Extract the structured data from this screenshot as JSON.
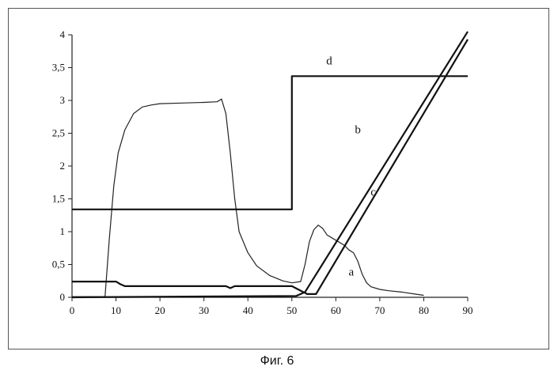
{
  "caption": "Фиг. 6",
  "chart_data": {
    "type": "line",
    "xlabel": "",
    "ylabel": "",
    "xlim": [
      0,
      90
    ],
    "ylim": [
      0,
      4
    ],
    "x_ticks": [
      0,
      10,
      20,
      30,
      40,
      50,
      60,
      70,
      80,
      90
    ],
    "x_tick_labels": [
      "0",
      "10",
      "20",
      "30",
      "40",
      "50",
      "60",
      "70",
      "80",
      "90"
    ],
    "y_ticks": [
      0,
      0.5,
      1,
      1.5,
      2,
      2.5,
      3,
      3.5,
      4
    ],
    "y_tick_labels": [
      "0",
      "0,5",
      "1",
      "1,5",
      "2",
      "2,5",
      "3",
      "3,5",
      "4"
    ],
    "grid": false,
    "legend": "none",
    "series": [
      {
        "name": "a",
        "color": "#222222",
        "label_at": [
          63.5,
          0.33
        ],
        "x": [
          0,
          7.5,
          8.5,
          9.5,
          10.5,
          12,
          14,
          16,
          18,
          20,
          25,
          30,
          33,
          34,
          35,
          36,
          37,
          38,
          40,
          42,
          45,
          48,
          50,
          52,
          53,
          54,
          55,
          56,
          57,
          58,
          60,
          62,
          63,
          64,
          65,
          66,
          67,
          68,
          70,
          72,
          75,
          78,
          80
        ],
        "y": [
          0.01,
          0.01,
          0.9,
          1.7,
          2.2,
          2.55,
          2.8,
          2.9,
          2.93,
          2.95,
          2.96,
          2.97,
          2.98,
          3.02,
          2.8,
          2.2,
          1.5,
          1.0,
          0.68,
          0.48,
          0.33,
          0.25,
          0.22,
          0.24,
          0.5,
          0.85,
          1.03,
          1.1,
          1.05,
          0.95,
          0.87,
          0.79,
          0.72,
          0.68,
          0.55,
          0.35,
          0.22,
          0.16,
          0.12,
          0.1,
          0.08,
          0.05,
          0.03
        ]
      },
      {
        "name": "b",
        "color": "#111111",
        "label_at": [
          65,
          2.5
        ],
        "x": [
          0,
          51,
          53,
          90
        ],
        "y": [
          0,
          0.02,
          0.08,
          4.05
        ]
      },
      {
        "name": "c",
        "color": "#111111",
        "label_at": [
          68.5,
          1.55
        ],
        "x": [
          0,
          10,
          11,
          12,
          25,
          35,
          36,
          37,
          50,
          53.5,
          55.5,
          90
        ],
        "y": [
          0.24,
          0.24,
          0.2,
          0.17,
          0.17,
          0.17,
          0.14,
          0.17,
          0.17,
          0.05,
          0.05,
          3.93
        ]
      },
      {
        "name": "d",
        "color": "#111111",
        "label_at": [
          58.5,
          3.55
        ],
        "x": [
          0,
          50,
          50,
          90
        ],
        "y": [
          1.34,
          1.34,
          3.37,
          3.37
        ]
      }
    ]
  }
}
